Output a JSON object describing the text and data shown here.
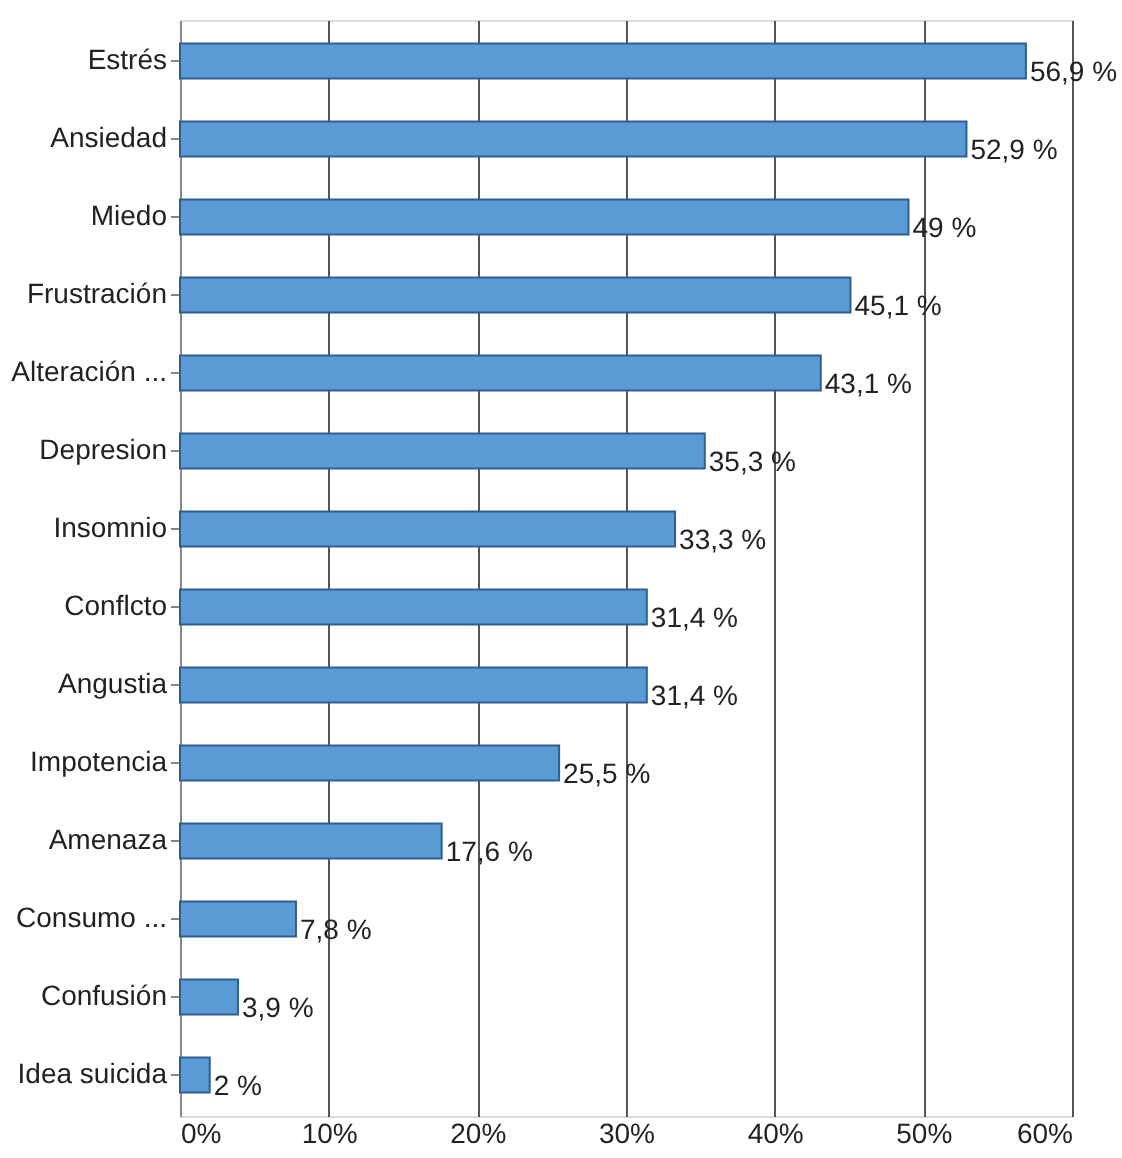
{
  "chart_data": {
    "type": "bar",
    "orientation": "horizontal",
    "categories": [
      "Estrés",
      "Ansiedad",
      "Miedo",
      "Frustración",
      "Alteración ...",
      "Depresion",
      "Insomnio",
      "Conflcto",
      "Angustia",
      "Impotencia",
      "Amenaza",
      "Consumo ...",
      "Confusión",
      "Idea suicida"
    ],
    "values": [
      56.9,
      52.9,
      49,
      45.1,
      43.1,
      35.3,
      33.3,
      31.4,
      31.4,
      25.5,
      17.6,
      7.8,
      3.9,
      2
    ],
    "value_labels": [
      "56,9 %",
      "52,9 %",
      "49 %",
      "45,1 %",
      "43,1 %",
      "35,3 %",
      "33,3 %",
      "31,4 %",
      "31,4 %",
      "25,5 %",
      "17,6 %",
      "7,8 %",
      "3,9 %",
      "2 %"
    ],
    "color": "#5b9bd5",
    "xlim": [
      0,
      60
    ],
    "xticks": [
      {
        "value": 0,
        "label": "0%"
      },
      {
        "value": 10,
        "label": "10%"
      },
      {
        "value": 20,
        "label": "20%"
      },
      {
        "value": 30,
        "label": "30%"
      },
      {
        "value": 40,
        "label": "40%"
      },
      {
        "value": 50,
        "label": "50%"
      },
      {
        "value": 60,
        "label": "60%"
      }
    ],
    "grid": "x"
  }
}
